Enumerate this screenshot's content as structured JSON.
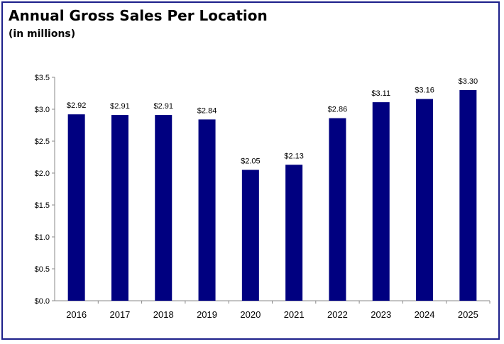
{
  "chart_data": {
    "type": "bar",
    "title": "Annual Gross Sales Per Location",
    "subtitle": "(in millions)",
    "categories": [
      "2016",
      "2017",
      "2018",
      "2019",
      "2020",
      "2021",
      "2022",
      "2023",
      "2024",
      "2025"
    ],
    "values": [
      2.92,
      2.91,
      2.91,
      2.84,
      2.05,
      2.13,
      2.86,
      3.11,
      3.16,
      3.3
    ],
    "data_labels": [
      "$2.92",
      "$2.91",
      "$2.91",
      "$2.84",
      "$2.05",
      "$2.13",
      "$2.86",
      "$3.11",
      "$3.16",
      "$3.30"
    ],
    "y_ticks": [
      0,
      0.5,
      1.0,
      1.5,
      2.0,
      2.5,
      3.0,
      3.5
    ],
    "y_tick_labels": [
      "$0.0",
      "$0.5",
      "$1.0",
      "$1.5",
      "$2.0",
      "$2.5",
      "$3.0",
      "$3.5"
    ],
    "xlabel": "",
    "ylabel": "",
    "ylim": [
      0,
      3.5
    ],
    "grid": false,
    "legend": "none",
    "bar_color": "#000080",
    "frame_color": "#1c1f8a"
  }
}
